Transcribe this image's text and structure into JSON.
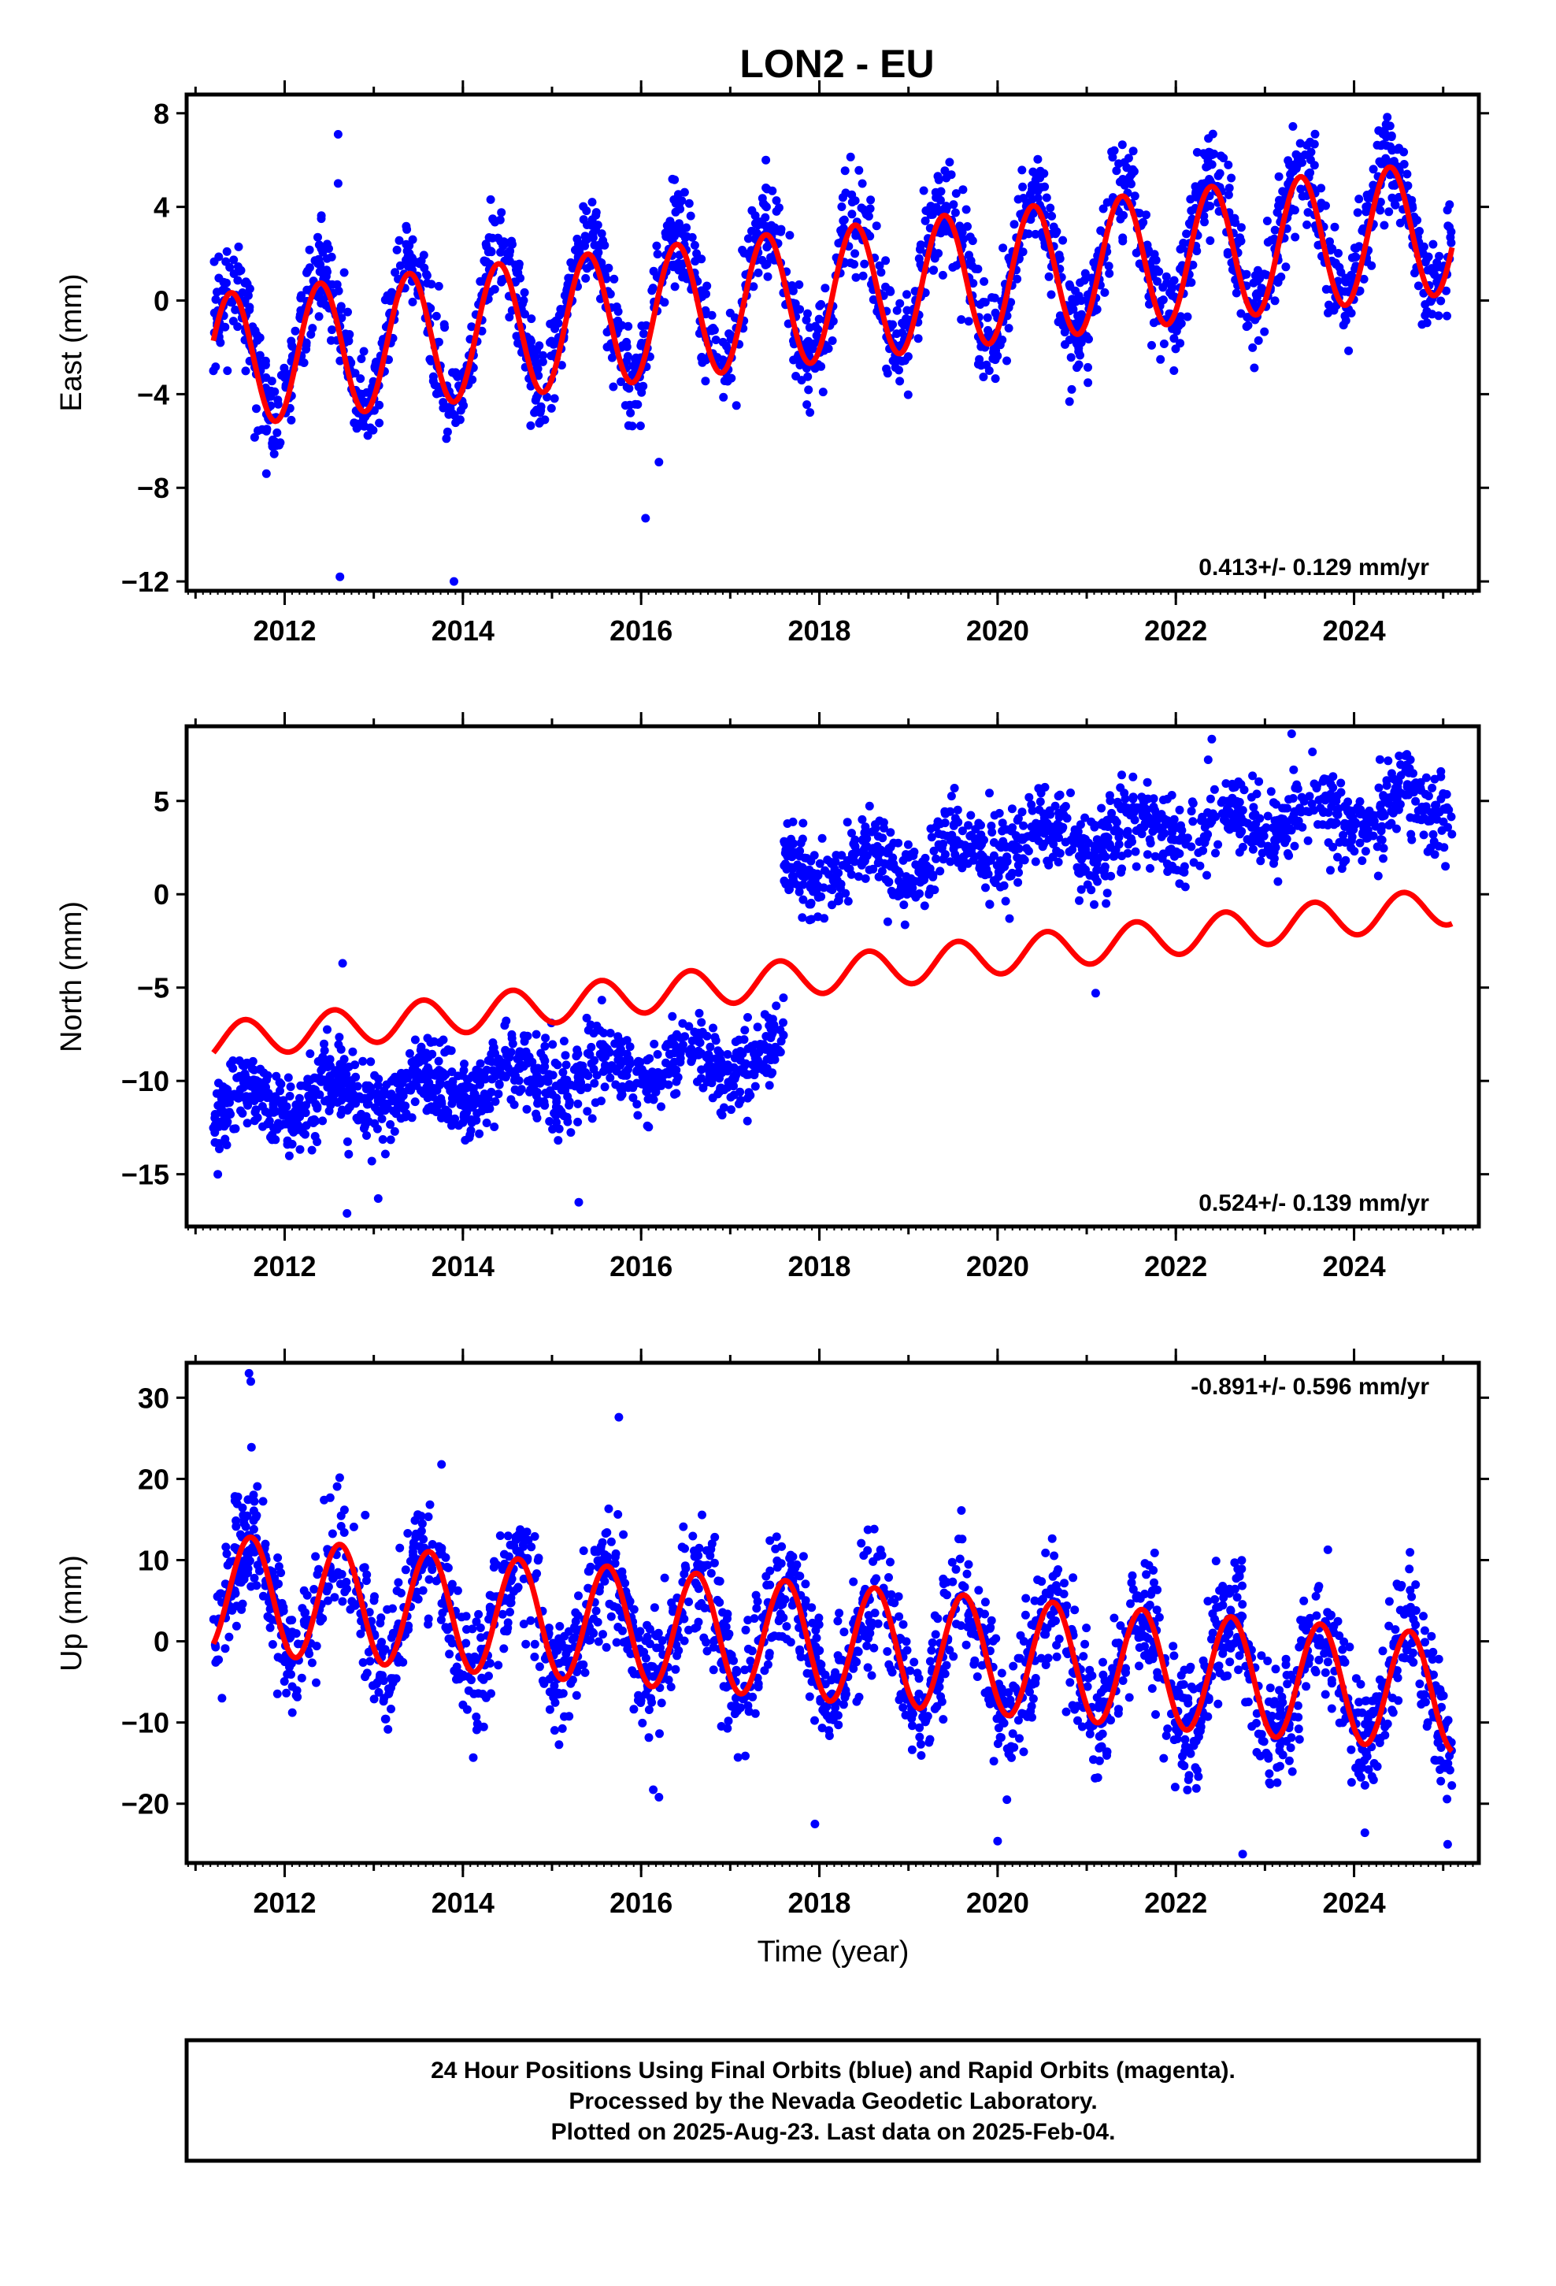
{
  "title": "LON2 - EU",
  "xlabel": "Time (year)",
  "footer": {
    "line1": "24 Hour Positions Using Final Orbits (blue) and Rapid Orbits (magenta).",
    "line2": "Processed by the Nevada Geodetic Laboratory.",
    "line3": "Plotted on 2025-Aug-23. Last data on 2025-Feb-04."
  },
  "colors": {
    "points": "#0000ff",
    "model": "#ff0000",
    "axis": "#000000"
  },
  "chart_data": [
    {
      "type": "scatter",
      "ylabel": "East (mm)",
      "rate_label": "0.413+/- 0.129 mm/yr",
      "rate_label_position": "bottom-right",
      "xlim": [
        2010.9,
        2025.4
      ],
      "ylim": [
        -12.4,
        8.8
      ],
      "yticks": [
        8,
        4,
        0,
        -4,
        -8,
        -12
      ],
      "ytick_labels": [
        "8",
        "4",
        "0",
        "−4",
        "−8",
        "−12"
      ],
      "xticks": [
        2012,
        2014,
        2016,
        2018,
        2020,
        2022,
        2024
      ],
      "xtick_labels": [
        "2012",
        "2014",
        "2016",
        "2018",
        "2020",
        "2022",
        "2024"
      ],
      "series": [
        {
          "type": "scatter",
          "color": "#0000ff",
          "x_range": [
            2011.2,
            2025.1
          ],
          "trend_per_year": 0.413,
          "offset": -2.3,
          "annual_amplitude": 3.0,
          "annual_peak": 2011.4,
          "scatter_std": 1.05,
          "sample_count": 2200
        },
        {
          "type": "line",
          "color": "#ff0000",
          "x_range": [
            2011.2,
            2025.1
          ],
          "trend_per_year": 0.413,
          "offset": -2.6,
          "annual_amplitude": 2.85,
          "annual_peak": 2011.4
        }
      ],
      "outliers": [
        {
          "x": 2012.6,
          "y": 7.1
        },
        {
          "x": 2012.6,
          "y": 5.0
        },
        {
          "x": 2012.62,
          "y": -11.8
        },
        {
          "x": 2013.9,
          "y": -12.0
        },
        {
          "x": 2016.05,
          "y": -9.3
        },
        {
          "x": 2016.2,
          "y": -6.9
        },
        {
          "x": 2017.4,
          "y": 6.0
        },
        {
          "x": 2011.2,
          "y": -3.0
        }
      ]
    },
    {
      "type": "scatter",
      "ylabel": "North (mm)",
      "rate_label": "0.524+/- 0.139 mm/yr",
      "rate_label_position": "bottom-right",
      "xlim": [
        2010.9,
        2025.4
      ],
      "ylim": [
        -17.8,
        9.0
      ],
      "yticks": [
        5,
        0,
        -5,
        -10,
        -15
      ],
      "ytick_labels": [
        "5",
        "0",
        "−5",
        "−10",
        "−15"
      ],
      "xticks": [
        2012,
        2014,
        2016,
        2018,
        2020,
        2022,
        2024
      ],
      "xtick_labels": [
        "2012",
        "2014",
        "2016",
        "2018",
        "2020",
        "2022",
        "2024"
      ],
      "series": [
        {
          "type": "scatter",
          "color": "#0000ff",
          "x_range": [
            2011.2,
            2017.6
          ],
          "offset": -11.5,
          "trend_per_year": 0.45,
          "annual_amplitude": 0.9,
          "annual_peak": 2011.55,
          "scatter_std": 1.05,
          "sample_count": 1100
        },
        {
          "type": "scatter",
          "color": "#0000ff",
          "x_range": [
            2017.6,
            2025.1
          ],
          "offset": 1.2,
          "trend_per_year": 0.5,
          "annual_amplitude": 0.9,
          "annual_peak": 2011.55,
          "scatter_std": 1.1,
          "sample_count": 1100
        },
        {
          "type": "line",
          "color": "#ff0000",
          "x_range": [
            2011.2,
            2025.1
          ],
          "trend_per_year": 0.524,
          "offset": -7.9,
          "annual_amplitude": 1.0,
          "annual_peak": 2011.55
        }
      ],
      "outliers": [
        {
          "x": 2012.65,
          "y": -3.7
        },
        {
          "x": 2012.7,
          "y": -17.1
        },
        {
          "x": 2013.05,
          "y": -16.3
        },
        {
          "x": 2015.3,
          "y": -16.5
        },
        {
          "x": 2021.1,
          "y": -5.3
        },
        {
          "x": 2023.3,
          "y": 8.6
        },
        {
          "x": 2011.25,
          "y": -15.0
        }
      ]
    },
    {
      "type": "scatter",
      "ylabel": "Up (mm)",
      "rate_label": "-0.891+/- 0.596 mm/yr",
      "rate_label_position": "top-right",
      "xlim": [
        2010.9,
        2025.4
      ],
      "ylim": [
        -27.3,
        34.3
      ],
      "yticks": [
        30,
        20,
        10,
        0,
        -10,
        -20
      ],
      "ytick_labels": [
        "30",
        "20",
        "10",
        "0",
        "−10",
        "−20"
      ],
      "xticks": [
        2012,
        2014,
        2016,
        2018,
        2020,
        2022,
        2024
      ],
      "xtick_labels": [
        "2012",
        "2014",
        "2016",
        "2018",
        "2020",
        "2022",
        "2024"
      ],
      "series": [
        {
          "type": "scatter",
          "color": "#0000ff",
          "x_range": [
            2011.2,
            2025.1
          ],
          "trend_per_year": -0.891,
          "offset": 6.0,
          "annual_amplitude": 7.0,
          "annual_peak": 2011.62,
          "scatter_std": 3.8,
          "sample_count": 2200
        },
        {
          "type": "line",
          "color": "#ff0000",
          "x_range": [
            2011.2,
            2025.1
          ],
          "trend_per_year": -0.891,
          "offset": 6.0,
          "annual_amplitude": 7.2,
          "annual_peak": 2011.62
        }
      ],
      "outliers": [
        {
          "x": 2011.6,
          "y": 33.0
        },
        {
          "x": 2011.62,
          "y": 32.0
        },
        {
          "x": 2015.75,
          "y": 27.6
        },
        {
          "x": 2022.75,
          "y": -26.2
        },
        {
          "x": 2020.0,
          "y": -24.6
        },
        {
          "x": 2016.2,
          "y": -19.2
        },
        {
          "x": 2017.95,
          "y": -22.5
        },
        {
          "x": 2025.05,
          "y": -25.0
        }
      ]
    }
  ]
}
